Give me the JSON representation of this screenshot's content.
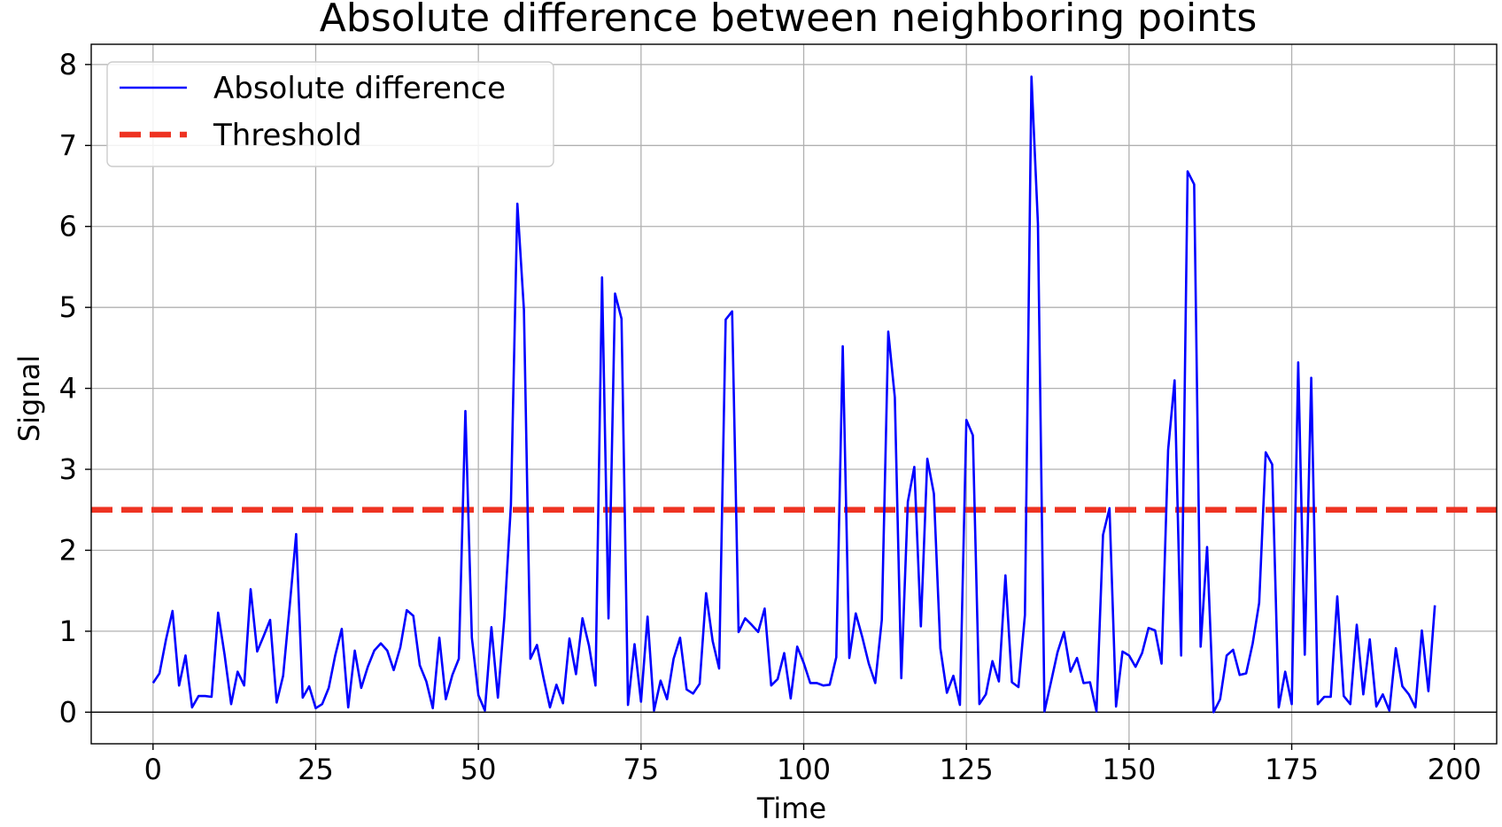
{
  "chart_data": {
    "type": "line",
    "title": "Absolute difference between neighboring points",
    "xlabel": "Time",
    "ylabel": "Signal",
    "xlim": [
      -9.5,
      206.5
    ],
    "ylim": [
      -0.39,
      8.25
    ],
    "xticks": [
      0,
      25,
      50,
      75,
      100,
      125,
      150,
      175,
      200
    ],
    "yticks": [
      0,
      1,
      2,
      3,
      4,
      5,
      6,
      7,
      8
    ],
    "grid": true,
    "legend_position": "upper left",
    "zero_line": 0,
    "series": [
      {
        "name": "Absolute difference",
        "color": "#0000ff",
        "style": "solid",
        "x": [
          0,
          1,
          2,
          3,
          4,
          5,
          6,
          7,
          8,
          9,
          10,
          11,
          12,
          13,
          14,
          15,
          16,
          17,
          18,
          19,
          20,
          21,
          22,
          23,
          24,
          25,
          26,
          27,
          28,
          29,
          30,
          31,
          32,
          33,
          34,
          35,
          36,
          37,
          38,
          39,
          40,
          41,
          42,
          43,
          44,
          45,
          46,
          47,
          48,
          49,
          50,
          51,
          52,
          53,
          54,
          55,
          56,
          57,
          58,
          59,
          60,
          61,
          62,
          63,
          64,
          65,
          66,
          67,
          68,
          69,
          70,
          71,
          72,
          73,
          74,
          75,
          76,
          77,
          78,
          79,
          80,
          81,
          82,
          83,
          84,
          85,
          86,
          87,
          88,
          89,
          90,
          91,
          92,
          93,
          94,
          95,
          96,
          97,
          98,
          99,
          100,
          101,
          102,
          103,
          104,
          105,
          106,
          107,
          108,
          109,
          110,
          111,
          112,
          113,
          114,
          115,
          116,
          117,
          118,
          119,
          120,
          121,
          122,
          123,
          124,
          125,
          126,
          127,
          128,
          129,
          130,
          131,
          132,
          133,
          134,
          135,
          136,
          137,
          138,
          139,
          140,
          141,
          142,
          143,
          144,
          145,
          146,
          147,
          148,
          149,
          150,
          151,
          152,
          153,
          154,
          155,
          156,
          157,
          158,
          159,
          160,
          161,
          162,
          163,
          164,
          165,
          166,
          167,
          168,
          169,
          170,
          171,
          172,
          173,
          174,
          175,
          176,
          177,
          178,
          179,
          180,
          181,
          182,
          183,
          184,
          185,
          186,
          187,
          188,
          189,
          190,
          191,
          192,
          193,
          194,
          195,
          196,
          197
        ],
        "y": [
          0.36,
          0.48,
          0.9,
          1.25,
          0.33,
          0.7,
          0.06,
          0.2,
          0.2,
          0.19,
          1.23,
          0.71,
          0.1,
          0.5,
          0.33,
          1.52,
          0.75,
          0.94,
          1.14,
          0.12,
          0.45,
          1.31,
          2.2,
          0.18,
          0.32,
          0.05,
          0.1,
          0.3,
          0.7,
          1.03,
          0.06,
          0.76,
          0.3,
          0.56,
          0.76,
          0.85,
          0.76,
          0.52,
          0.8,
          1.26,
          1.19,
          0.58,
          0.38,
          0.05,
          0.92,
          0.16,
          0.46,
          0.66,
          3.72,
          0.92,
          0.21,
          0.02,
          1.05,
          0.18,
          1.17,
          2.56,
          6.28,
          4.97,
          0.66,
          0.83,
          0.43,
          0.06,
          0.34,
          0.11,
          0.91,
          0.47,
          1.16,
          0.82,
          0.33,
          5.37,
          1.16,
          5.17,
          4.86,
          0.09,
          0.84,
          0.13,
          1.18,
          0.02,
          0.39,
          0.16,
          0.66,
          0.92,
          0.28,
          0.23,
          0.35,
          1.47,
          0.88,
          0.54,
          4.85,
          4.95,
          0.99,
          1.16,
          1.08,
          0.99,
          1.28,
          0.33,
          0.41,
          0.73,
          0.17,
          0.81,
          0.61,
          0.36,
          0.36,
          0.33,
          0.34,
          0.68,
          4.52,
          0.67,
          1.22,
          0.93,
          0.6,
          0.36,
          1.14,
          4.7,
          3.89,
          0.42,
          2.6,
          3.03,
          1.06,
          3.13,
          2.7,
          0.79,
          0.24,
          0.45,
          0.09,
          3.61,
          3.42,
          0.1,
          0.22,
          0.63,
          0.38,
          1.69,
          0.37,
          0.31,
          1.2,
          7.85,
          6.03,
          0.01,
          0.37,
          0.74,
          0.99,
          0.5,
          0.67,
          0.36,
          0.37,
          0.01,
          2.19,
          2.52,
          0.07,
          0.75,
          0.7,
          0.56,
          0.73,
          1.04,
          1.01,
          0.6,
          3.24,
          4.1,
          0.7,
          6.68,
          6.52,
          0.81,
          2.04,
          0.0,
          0.16,
          0.7,
          0.77,
          0.46,
          0.48,
          0.85,
          1.35,
          3.21,
          3.06,
          0.06,
          0.5,
          0.1,
          4.32,
          0.71,
          4.13,
          0.1,
          0.19,
          0.19,
          1.43,
          0.2,
          0.1,
          1.08,
          0.22,
          0.9,
          0.07,
          0.22,
          0.02,
          0.79,
          0.32,
          0.22,
          0.06,
          1.01,
          0.26,
          1.32
        ]
      },
      {
        "name": "Threshold",
        "color": "#ee3322",
        "style": "dashed",
        "y_constant": 2.5
      }
    ]
  }
}
